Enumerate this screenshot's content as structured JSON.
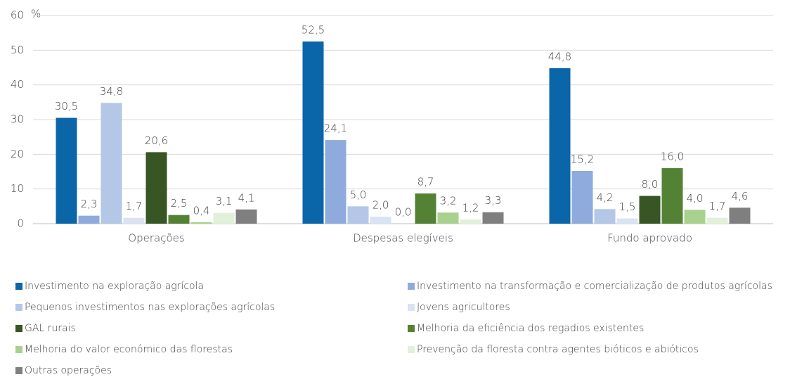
{
  "chart_data": {
    "type": "bar",
    "y_unit": "%",
    "categories": [
      "Operações",
      "Despesas elegíveis",
      "Fundo aprovado"
    ],
    "ylim": [
      0,
      60
    ],
    "yticks": [
      0,
      10,
      20,
      30,
      40,
      50,
      60
    ],
    "grid": true,
    "legend": "bottom",
    "series": [
      {
        "name": "Investimento na exploração agrícola",
        "color": "#0a66a8",
        "values": [
          30.5,
          52.5,
          44.8
        ],
        "value_labels": [
          "30,5",
          "52,5",
          "44,8"
        ]
      },
      {
        "name": "Investimento na transformação e comercialização de produtos agrícolas",
        "color": "#8faadc",
        "values": [
          2.3,
          24.1,
          15.2
        ],
        "value_labels": [
          "2,3",
          "24,1",
          "15,2"
        ]
      },
      {
        "name": "Pequenos investimentos nas explorações agrícolas",
        "color": "#b4c7e7",
        "values": [
          34.8,
          5.0,
          4.2
        ],
        "value_labels": [
          "34,8",
          "5,0",
          "4,2"
        ]
      },
      {
        "name": "Jovens agricultores",
        "color": "#dae3f3",
        "values": [
          1.7,
          2.0,
          1.5
        ],
        "value_labels": [
          "1,7",
          "2,0",
          "1,5"
        ]
      },
      {
        "name": "GAL rurais",
        "color": "#375623",
        "values": [
          20.6,
          0.0,
          8.0
        ],
        "value_labels": [
          "20,6",
          "0,0",
          "8,0"
        ]
      },
      {
        "name": "Melhoria da eficiência dos regadios existentes",
        "color": "#548235",
        "values": [
          2.5,
          8.7,
          16.0
        ],
        "value_labels": [
          "2,5",
          "8,7",
          "16,0"
        ]
      },
      {
        "name": "Melhoria do valor económico das florestas",
        "color": "#a9d18e",
        "values": [
          0.4,
          3.2,
          4.0
        ],
        "value_labels": [
          "0,4",
          "3,2",
          "4,0"
        ]
      },
      {
        "name": "Prevenção da floresta contra agentes bióticos e abióticos",
        "color": "#e2f0d9",
        "values": [
          3.1,
          1.2,
          1.7
        ],
        "value_labels": [
          "3,1",
          "1,2",
          "1,7"
        ]
      },
      {
        "name": "Outras operações",
        "color": "#7f7f7f",
        "values": [
          4.1,
          3.3,
          4.6
        ],
        "value_labels": [
          "4,1",
          "3,3",
          "4,6"
        ]
      }
    ]
  }
}
